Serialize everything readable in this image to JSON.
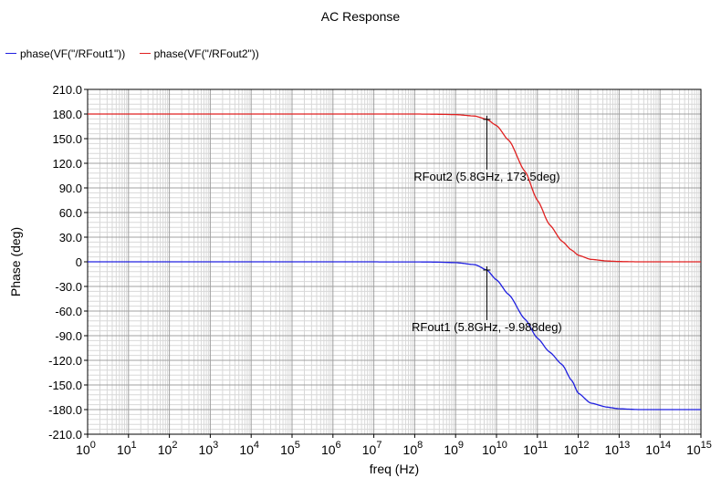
{
  "chart_data": {
    "type": "line",
    "title": "AC Response",
    "xlabel": "freq (Hz)",
    "ylabel": "Phase (deg)",
    "x_scale": "log",
    "xlim": [
      1,
      1000000000000000.0
    ],
    "ylim": [
      -210,
      210
    ],
    "x_ticks": [
      {
        "base": "10",
        "exp": "0"
      },
      {
        "base": "10",
        "exp": "1"
      },
      {
        "base": "10",
        "exp": "2"
      },
      {
        "base": "10",
        "exp": "3"
      },
      {
        "base": "10",
        "exp": "4"
      },
      {
        "base": "10",
        "exp": "5"
      },
      {
        "base": "10",
        "exp": "6"
      },
      {
        "base": "10",
        "exp": "7"
      },
      {
        "base": "10",
        "exp": "8"
      },
      {
        "base": "10",
        "exp": "9"
      },
      {
        "base": "10",
        "exp": "10"
      },
      {
        "base": "10",
        "exp": "11"
      },
      {
        "base": "10",
        "exp": "12"
      },
      {
        "base": "10",
        "exp": "13"
      },
      {
        "base": "10",
        "exp": "14"
      },
      {
        "base": "10",
        "exp": "15"
      }
    ],
    "y_ticks": [
      "210.0",
      "180.0",
      "150.0",
      "120.0",
      "90.0",
      "60.0",
      "30.0",
      "0",
      "-30.0",
      "-60.0",
      "-90.0",
      "-120.0",
      "-150.0",
      "-180.0",
      "-210.0"
    ],
    "grid": true,
    "legend_position": "top-left",
    "series": [
      {
        "name": "phase(VF(\"/RFout1\"))",
        "color": "#2020e0",
        "x": [
          1,
          1000.0,
          1000000.0,
          100000000.0,
          300000000.0,
          1000000000.0,
          3000000000.0,
          5800000000.0,
          10000000000.0,
          20000000000.0,
          50000000000.0,
          100000000000.0,
          200000000000.0,
          400000000000.0,
          700000000000.0,
          1000000000000.0,
          2000000000000.0,
          5000000000000.0,
          10000000000000.0,
          30000000000000.0,
          100000000000000.0,
          1000000000000000.0
        ],
        "y": [
          0,
          0,
          0,
          -0.1,
          -0.3,
          -1,
          -3.5,
          -9.988,
          -22,
          -40,
          -70,
          -93,
          -110,
          -125,
          -145,
          -160,
          -172,
          -177,
          -179,
          -180,
          -180,
          -180
        ]
      },
      {
        "name": "phase(VF(\"/RFout2\"))",
        "color": "#e02020",
        "x": [
          1,
          1000.0,
          1000000.0,
          100000000.0,
          300000000.0,
          1000000000.0,
          3000000000.0,
          5800000000.0,
          10000000000.0,
          20000000000.0,
          50000000000.0,
          100000000000.0,
          200000000000.0,
          400000000000.0,
          700000000000.0,
          1000000000000.0,
          2000000000000.0,
          5000000000000.0,
          10000000000000.0,
          30000000000000.0,
          100000000000000.0,
          1000000000000000.0
        ],
        "y": [
          180,
          180,
          180,
          180,
          179.8,
          179.3,
          177.5,
          173.5,
          166,
          148,
          110,
          75,
          45,
          25,
          14,
          8,
          3,
          1,
          0.3,
          0,
          0,
          0
        ]
      }
    ],
    "annotations": [
      {
        "text": "RFout2 (5.8GHz, 173.5deg)",
        "x": 5800000000.0,
        "y": 173.5
      },
      {
        "text": "RFout1 (5.8GHz, -9.988deg)",
        "x": 5800000000.0,
        "y": -9.988
      }
    ]
  }
}
